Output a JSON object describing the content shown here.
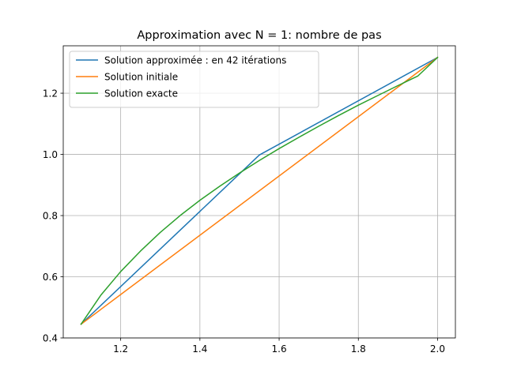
{
  "chart_data": {
    "type": "line",
    "title": "Approximation avec N = 1: nombre de pas",
    "xlabel": "",
    "ylabel": "",
    "xlim": [
      1.055,
      2.045
    ],
    "ylim": [
      0.4,
      1.355
    ],
    "xticks": [
      1.2,
      1.4,
      1.6,
      1.8,
      2.0
    ],
    "xtick_labels": [
      "1.2",
      "1.4",
      "1.6",
      "1.8",
      "2.0"
    ],
    "yticks": [
      0.4,
      0.6,
      0.8,
      1.0,
      1.2
    ],
    "ytick_labels": [
      "0.4",
      "0.6",
      "0.8",
      "1.0",
      "1.2"
    ],
    "grid": true,
    "legend_position": "top-left",
    "series": [
      {
        "name": "Solution approximée : en 42 itérations",
        "color": "#1f77b4",
        "x": [
          1.1,
          1.55,
          2.0
        ],
        "y": [
          0.445,
          0.998,
          1.317
        ]
      },
      {
        "name": "Solution initiale",
        "color": "#ff7f0e",
        "x": [
          1.1,
          2.0
        ],
        "y": [
          0.445,
          1.317
        ]
      },
      {
        "name": "Solution exacte",
        "color": "#2ca02c",
        "x": [
          1.1,
          1.15,
          1.2,
          1.25,
          1.3,
          1.35,
          1.4,
          1.45,
          1.5,
          1.55,
          1.6,
          1.65,
          1.7,
          1.75,
          1.8,
          1.85,
          1.9,
          1.95,
          2.0
        ],
        "y": [
          0.445,
          0.54,
          0.617,
          0.684,
          0.745,
          0.8,
          0.85,
          0.896,
          0.939,
          0.98,
          1.019,
          1.056,
          1.092,
          1.127,
          1.161,
          1.193,
          1.225,
          1.256,
          1.317
        ]
      }
    ]
  }
}
